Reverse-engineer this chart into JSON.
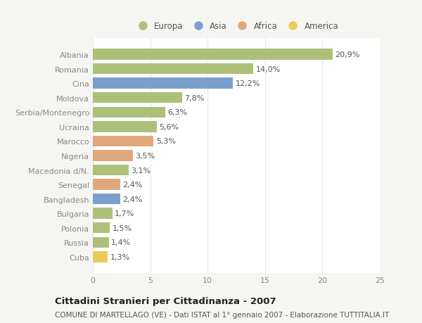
{
  "countries": [
    "Albania",
    "Romania",
    "Cina",
    "Moldova",
    "Serbia/Montenegro",
    "Ucraina",
    "Marocco",
    "Nigeria",
    "Macedonia d/N.",
    "Senegal",
    "Bangladesh",
    "Bulgaria",
    "Polonia",
    "Russia",
    "Cuba"
  ],
  "values": [
    20.9,
    14.0,
    12.2,
    7.8,
    6.3,
    5.6,
    5.3,
    3.5,
    3.1,
    2.4,
    2.4,
    1.7,
    1.5,
    1.4,
    1.3
  ],
  "labels": [
    "20,9%",
    "14,0%",
    "12,2%",
    "7,8%",
    "6,3%",
    "5,6%",
    "5,3%",
    "3,5%",
    "3,1%",
    "2,4%",
    "2,4%",
    "1,7%",
    "1,5%",
    "1,4%",
    "1,3%"
  ],
  "continents": [
    "Europa",
    "Europa",
    "Asia",
    "Europa",
    "Europa",
    "Europa",
    "Africa",
    "Africa",
    "Europa",
    "Africa",
    "Asia",
    "Europa",
    "Europa",
    "Europa",
    "America"
  ],
  "continent_colors": {
    "Europa": "#adc07a",
    "Asia": "#7a9fcc",
    "Africa": "#e0a87a",
    "America": "#e8cc5a"
  },
  "legend_order": [
    "Europa",
    "Asia",
    "Africa",
    "America"
  ],
  "title": "Cittadini Stranieri per Cittadinanza - 2007",
  "subtitle": "COMUNE DI MARTELLAGO (VE) - Dati ISTAT al 1° gennaio 2007 - Elaborazione TUTTITALIA.IT",
  "xlim": [
    0,
    25
  ],
  "xticks": [
    0,
    5,
    10,
    15,
    20,
    25
  ],
  "plot_bg": "#ffffff",
  "fig_bg": "#f5f5f2",
  "grid_color": "#e8e8e8",
  "bar_height": 0.75,
  "title_fontsize": 9.5,
  "subtitle_fontsize": 7.5,
  "tick_fontsize": 8,
  "label_fontsize": 8
}
